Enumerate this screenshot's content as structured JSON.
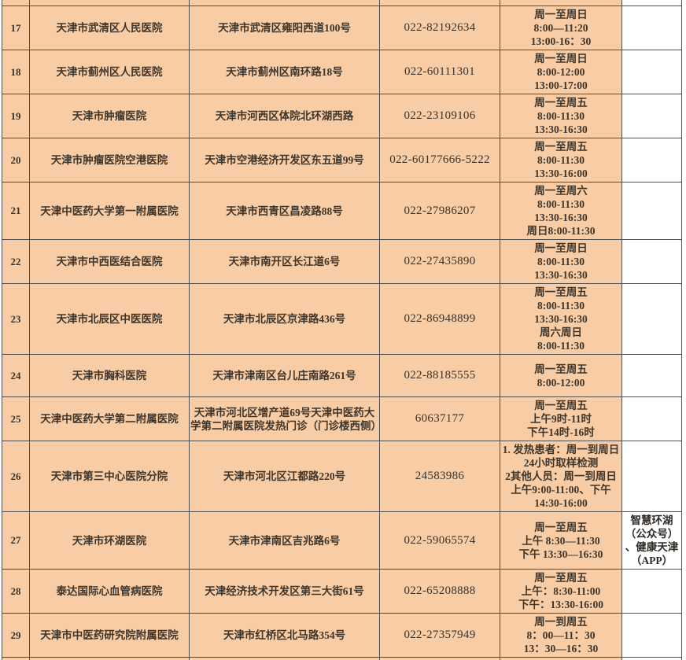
{
  "colors": {
    "cell_background": "#F8CCA4",
    "last_column_background": "#FFFFFF",
    "border": "#4F4F4F",
    "text": "#3E352B"
  },
  "table": {
    "rows": [
      {
        "no": "17",
        "name": "天津市武清区人民医院",
        "address": "天津市武清区雍阳西道100号",
        "phone": "022-82192634",
        "hours": "周一至周日\n8:00—11:20\n13:00-16：30",
        "app": ""
      },
      {
        "no": "18",
        "name": "天津市蓟州区人民医院",
        "address": "天津市蓟州区南环路18号",
        "phone": "022-60111301",
        "hours": "周一至周日\n8:00-12:00\n13:00-17:00",
        "app": ""
      },
      {
        "no": "19",
        "name": "天津市肿瘤医院",
        "address": "天津市河西区体院北环湖西路",
        "phone": "022-23109106",
        "hours": "周一至周五\n8:00-11:30\n13:30-16:30",
        "app": ""
      },
      {
        "no": "20",
        "name": "天津市肿瘤医院空港医院",
        "address": "天津市空港经济开发区东五道99号",
        "phone": "022-60177666-5222",
        "hours": "周一至周五\n8:00-11:30\n13:30-16:00",
        "app": ""
      },
      {
        "no": "21",
        "name": "天津中医药大学第一附属医院",
        "address": "天津市西青区昌凌路88号",
        "phone": "022-27986207",
        "hours": "周一至周六\n8:00-11:30\n13:30-16:30\n周日8:00-11:30",
        "app": ""
      },
      {
        "no": "22",
        "name": "天津市中西医结合医院",
        "address": "天津市南开区长江道6号",
        "phone": "022-27435890",
        "hours": "周一至周日\n8:00-11:30\n13:30-16:30",
        "app": ""
      },
      {
        "no": "23",
        "name": "天津市北辰区中医医院",
        "address": "天津市北辰区京津路436号",
        "phone": "022-86948899",
        "hours": "周一至周五\n8:00-11:30\n13:30-16:30\n周六周日\n8:00-11:30",
        "app": ""
      },
      {
        "no": "24",
        "name": "天津市胸科医院",
        "address": "天津市津南区台儿庄南路261号",
        "phone": "022-88185555",
        "hours": "周一至周五\n8:00-12:00",
        "app": ""
      },
      {
        "no": "25",
        "name": "天津中医药大学第二附属医院",
        "address": "天津市河北区增产道69号天津中医药大学第二附属医院发热门诊（门诊楼西侧）",
        "phone": "60637177",
        "hours": "周一至周五\n上午9时-11时\n下午14时-16时",
        "app": ""
      },
      {
        "no": "26",
        "name": "天津市第三中心医院分院",
        "address": "天津市河北区江都路220号",
        "phone": "24583986",
        "hours": "1. 发热患者：周一到周日\n24小时取样检测\n2其他人员：周一到周日\n上午9:00-11:00、下午\n14:30-16:00",
        "app": ""
      },
      {
        "no": "27",
        "name": "天津市环湖医院",
        "address": "天津市津南区吉兆路6号",
        "phone": "022-59065574",
        "hours": "周一至周五\n上午 8:30—11:30\n下午 13:30—16:30",
        "app": "智慧环湖\n（公众号）\n、健康天津\n（APP）"
      },
      {
        "no": "28",
        "name": "泰达国际心血管病医院",
        "address": "天津经济技术开发区第三大街61号",
        "phone": "022-65208888",
        "hours": "周一至周五\n上午：8:30-11:00\n下午：13:30-16:00",
        "app": ""
      },
      {
        "no": "29",
        "name": "天津市中医药研究院附属医院",
        "address": "天津市红桥区北马路354号",
        "phone": "022-27357949",
        "hours": "周一到周五\n8：00—11：30\n13：30—16：30",
        "app": ""
      }
    ]
  }
}
